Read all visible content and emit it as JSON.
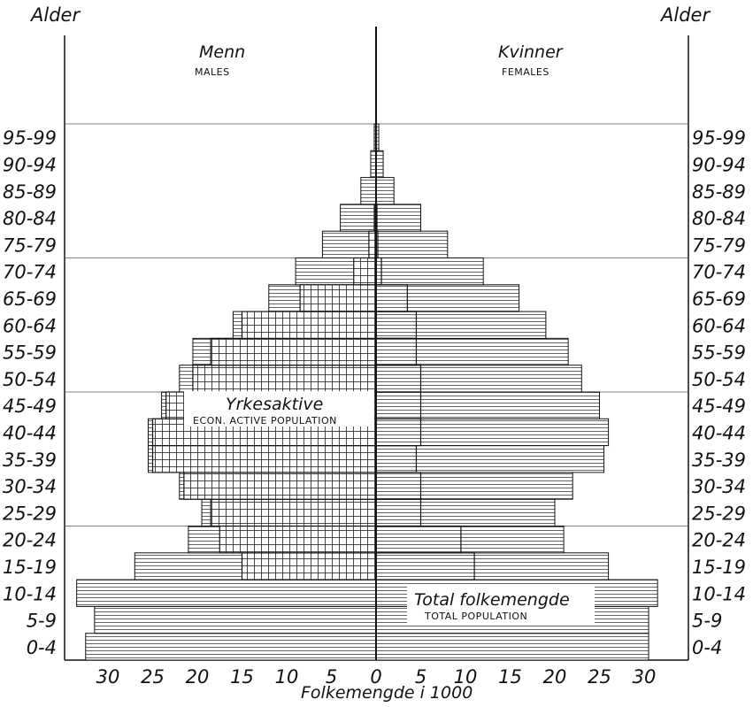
{
  "chart_data": {
    "type": "bar",
    "axis_label_left": "Alder",
    "axis_label_right": "Alder",
    "xlabel": "Folkemengde i 1000",
    "xlim": [
      -33,
      33
    ],
    "x_ticks": [
      30,
      25,
      20,
      15,
      10,
      5,
      0,
      5,
      10,
      15,
      20,
      25,
      30
    ],
    "categories": [
      "0-4",
      "5-9",
      "10-14",
      "15-19",
      "20-24",
      "25-29",
      "30-34",
      "35-39",
      "40-44",
      "45-49",
      "50-54",
      "55-59",
      "60-64",
      "65-69",
      "70-74",
      "75-79",
      "80-84",
      "85-89",
      "90-94",
      "95-99"
    ],
    "headers": {
      "left": {
        "title": "Menn",
        "subtitle": "MALES"
      },
      "right": {
        "title": "Kvinner",
        "subtitle": "FEMALES"
      }
    },
    "annotations": {
      "active_title": "Yrkesaktive",
      "active_subtitle": "ECON. ACTIVE POPULATION",
      "total_title": "Total folkemengde",
      "total_subtitle": "TOTAL POPULATION"
    },
    "series": [
      {
        "name": "Total folkemengde",
        "side": "male",
        "values": [
          32.5,
          31.5,
          33.5,
          27.0,
          21.0,
          19.5,
          22.0,
          25.5,
          25.5,
          24.0,
          22.0,
          20.5,
          16.0,
          12.0,
          9.0,
          6.0,
          4.0,
          1.7,
          0.6,
          0.2
        ]
      },
      {
        "name": "Yrkesaktive",
        "side": "male",
        "values": [
          0,
          0,
          0,
          15.0,
          17.5,
          18.5,
          21.5,
          25.0,
          25.0,
          23.5,
          20.5,
          18.5,
          15.0,
          8.5,
          2.5,
          0.8,
          0.2,
          0,
          0,
          0
        ]
      },
      {
        "name": "Total folkemengde",
        "side": "female",
        "values": [
          30.5,
          30.5,
          31.5,
          26.0,
          21.0,
          20.0,
          22.0,
          25.5,
          26.0,
          25.0,
          23.0,
          21.5,
          19.0,
          16.0,
          12.0,
          8.0,
          5.0,
          2.0,
          0.8,
          0.3
        ]
      },
      {
        "name": "Yrkesaktive",
        "side": "female",
        "values": [
          0,
          0,
          0,
          11.0,
          9.5,
          5.0,
          5.0,
          4.5,
          5.0,
          5.0,
          5.0,
          4.5,
          4.5,
          3.5,
          0.6,
          0.2,
          0.1,
          0,
          0,
          0
        ]
      }
    ]
  }
}
